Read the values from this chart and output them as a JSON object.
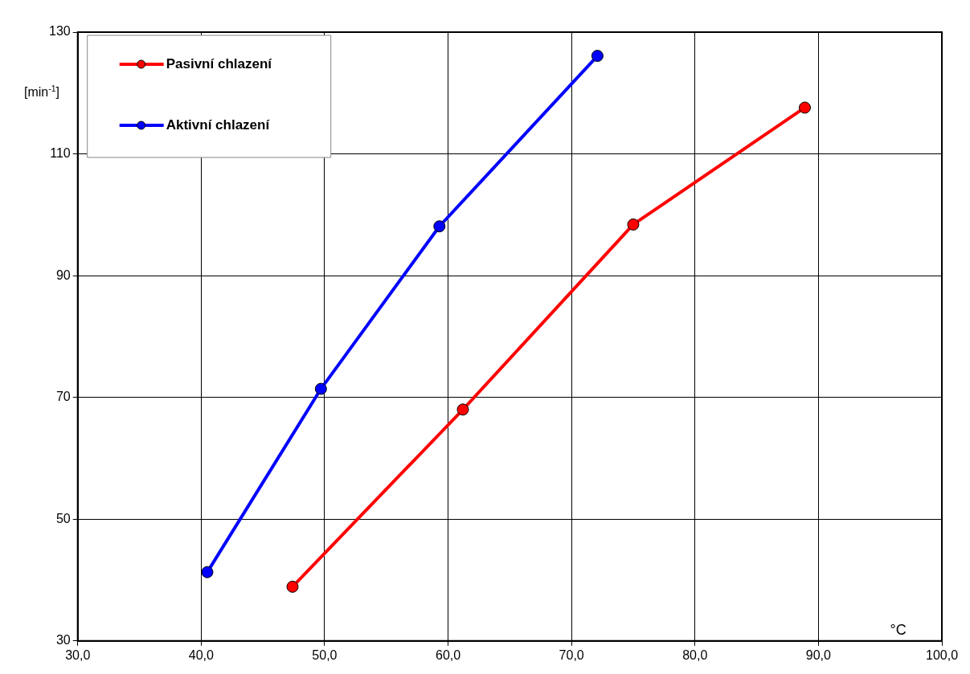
{
  "chart_data": {
    "type": "line",
    "xlabel": "°C",
    "ylabel": "[min$^{-1}$]",
    "xlim": [
      30,
      100
    ],
    "xticks": [
      {
        "value": 30,
        "label": "30,0"
      },
      {
        "value": 40,
        "label": "40,0"
      },
      {
        "value": 50,
        "label": "50,0"
      },
      {
        "value": 60,
        "label": "60,0"
      },
      {
        "value": 70,
        "label": "70,0"
      },
      {
        "value": 80,
        "label": "80,0"
      },
      {
        "value": 90,
        "label": "90,0"
      },
      {
        "value": 100,
        "label": "100,0"
      }
    ],
    "ylim": [
      30,
      130
    ],
    "yticks": [
      30,
      50,
      70,
      90,
      110,
      130
    ],
    "grid": true,
    "legend": "top left",
    "marker": "circle",
    "line_style": "solid",
    "series": [
      {
        "name": "Pasivní chlazení",
        "color": "#ff0000",
        "x": [
          47.4,
          61.2,
          75.0,
          88.9
        ],
        "values": [
          38.9,
          68.0,
          98.4,
          117.6
        ]
      },
      {
        "name": "Aktivní chlazení",
        "color": "#0000ff",
        "x": [
          40.5,
          49.7,
          59.3,
          72.1
        ],
        "values": [
          41.3,
          71.4,
          98.1,
          126.1
        ]
      }
    ]
  }
}
